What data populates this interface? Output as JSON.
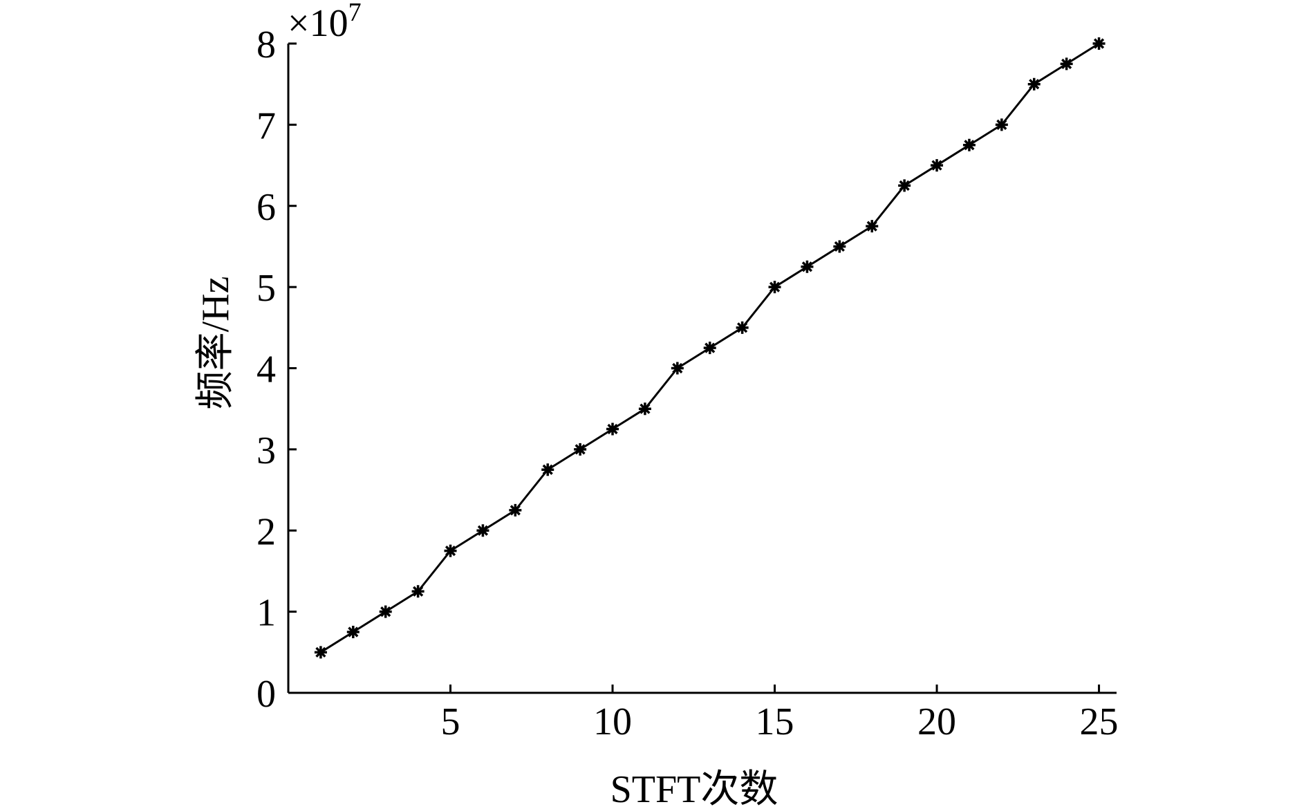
{
  "chart_data": {
    "type": "line",
    "y_label": "频率/Hz",
    "x_label": "STFT次数",
    "y_exponent_base": "×10",
    "y_exponent": "7",
    "x": [
      1,
      2,
      3,
      4,
      5,
      6,
      7,
      8,
      9,
      10,
      11,
      12,
      13,
      14,
      15,
      16,
      17,
      18,
      19,
      20,
      21,
      22,
      23,
      24,
      25
    ],
    "series": [
      {
        "color": "#000000",
        "marker": "asterisk",
        "values": [
          0.5,
          0.75,
          1.0,
          1.25,
          1.75,
          2.0,
          2.25,
          2.75,
          3.0,
          3.25,
          3.5,
          4.0,
          4.25,
          4.5,
          5.0,
          5.25,
          5.5,
          5.75,
          6.25,
          6.5,
          6.75,
          7.0,
          7.5,
          7.75,
          8.0
        ]
      }
    ],
    "xlim": [
      0,
      25.5
    ],
    "ylim": [
      0,
      8
    ],
    "xticks": [
      5,
      10,
      15,
      20,
      25
    ],
    "yticks": [
      0,
      1,
      2,
      3,
      4,
      5,
      6,
      7,
      8
    ],
    "grid": false
  }
}
